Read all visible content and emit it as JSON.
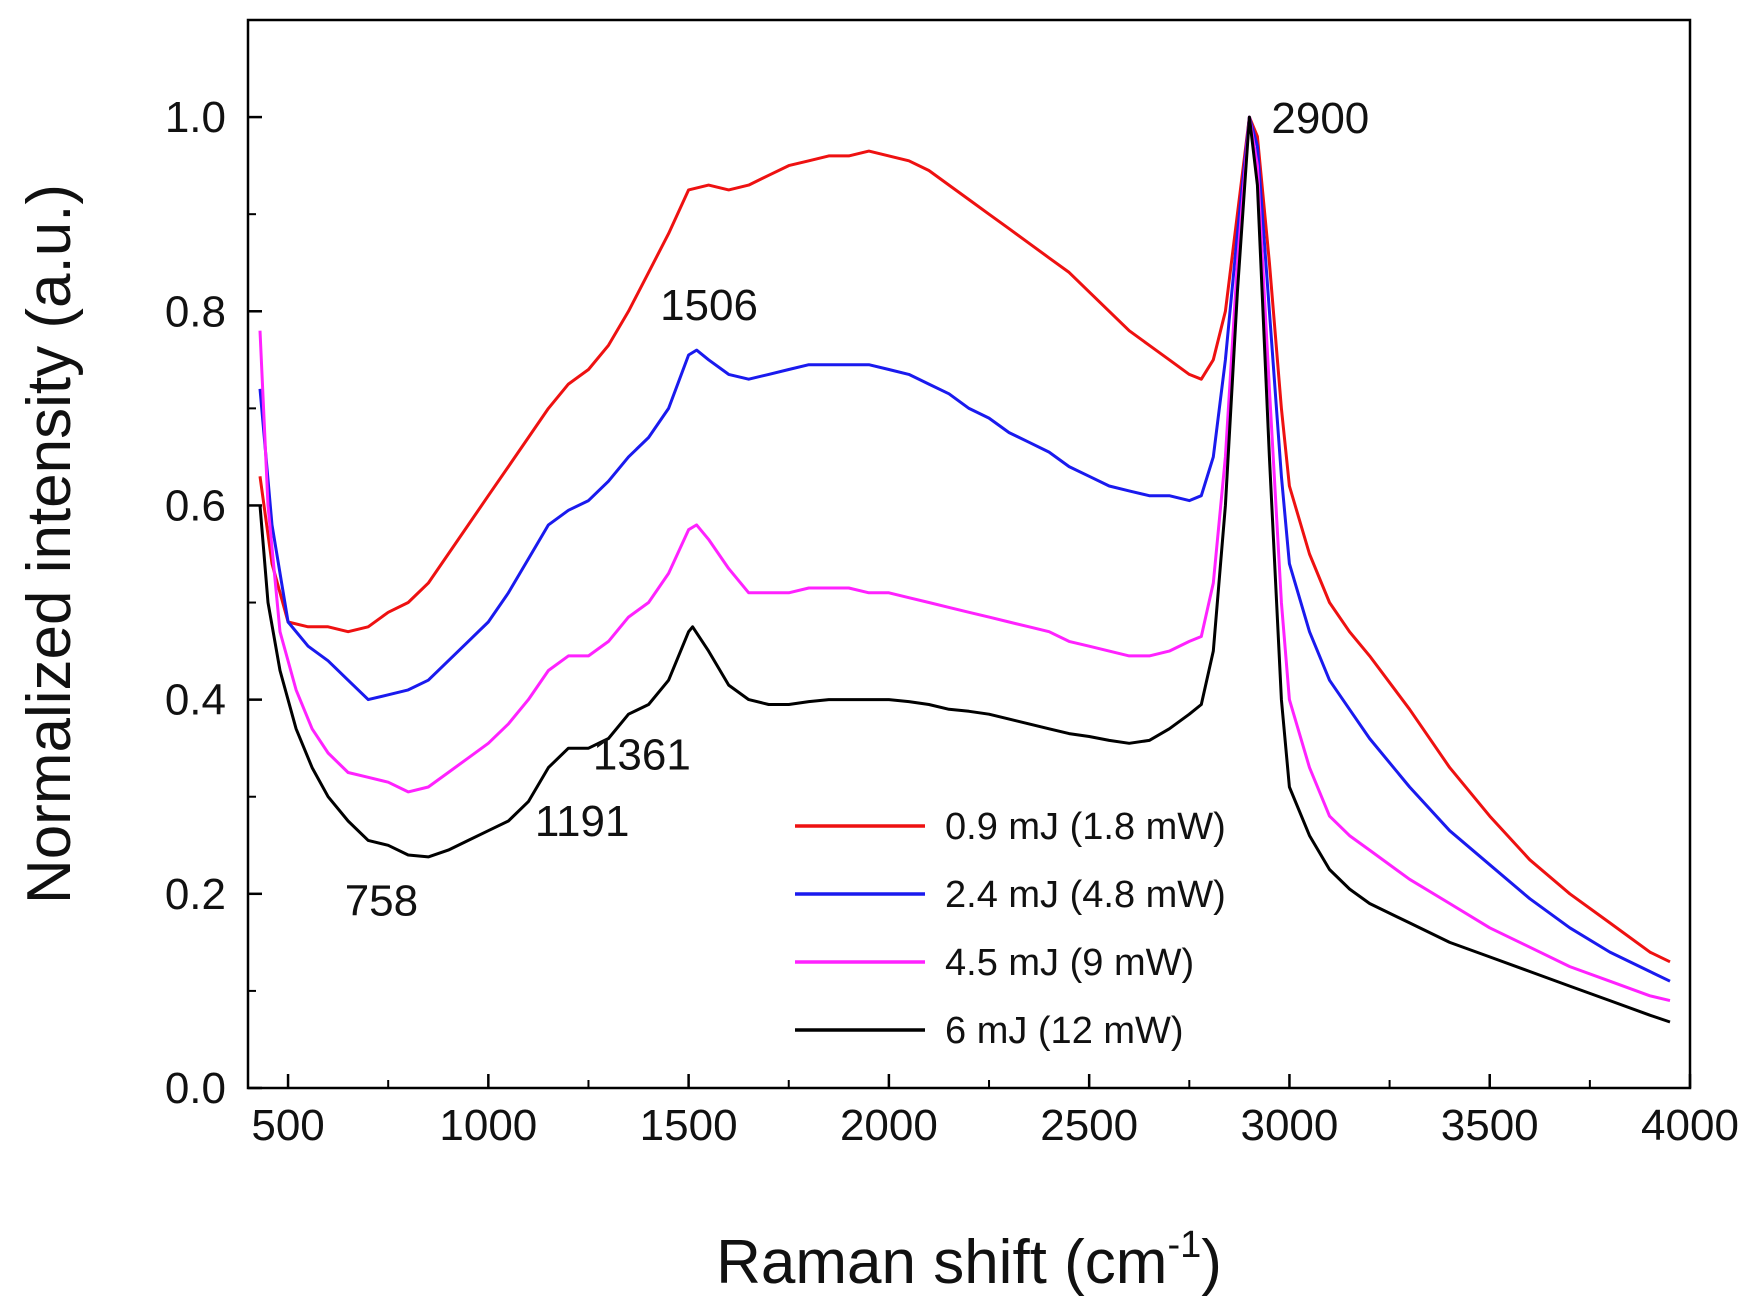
{
  "chart_data": {
    "type": "line",
    "title": "",
    "xlabel": "Raman shift (cm",
    "xlabel_sup": "-1",
    "xlabel_close": ")",
    "ylabel": "Normalized intensity (a.u.)",
    "xlim": [
      400,
      4000
    ],
    "ylim": [
      0.0,
      1.1
    ],
    "xticks": [
      500,
      1000,
      1500,
      2000,
      2500,
      3000,
      3500,
      4000
    ],
    "xtick_labels": [
      "500",
      "1000",
      "1500",
      "2000",
      "2500",
      "3000",
      "3500",
      "4000"
    ],
    "yticks": [
      0.0,
      0.2,
      0.4,
      0.6,
      0.8,
      1.0
    ],
    "ytick_labels": [
      "0.0",
      "0.2",
      "0.4",
      "0.6",
      "0.8",
      "1.0"
    ],
    "grid": false,
    "legend_position": "bottom-right",
    "annotations": [
      {
        "text": "758",
        "x": 758,
        "y": 0.25
      },
      {
        "text": "1191",
        "x": 1191,
        "y": 0.35
      },
      {
        "text": "1361",
        "x": 1361,
        "y": 0.39
      },
      {
        "text": "1506",
        "x": 1506,
        "y": 0.76
      },
      {
        "text": "2900",
        "x": 2900,
        "y": 1.0
      }
    ],
    "series": [
      {
        "name": "0.9 mJ (1.8 mW)",
        "color": "#ee1111",
        "points": [
          [
            430,
            0.63
          ],
          [
            460,
            0.54
          ],
          [
            500,
            0.48
          ],
          [
            550,
            0.475
          ],
          [
            600,
            0.475
          ],
          [
            650,
            0.47
          ],
          [
            700,
            0.475
          ],
          [
            750,
            0.49
          ],
          [
            800,
            0.5
          ],
          [
            850,
            0.52
          ],
          [
            900,
            0.55
          ],
          [
            950,
            0.58
          ],
          [
            1000,
            0.61
          ],
          [
            1050,
            0.64
          ],
          [
            1100,
            0.67
          ],
          [
            1150,
            0.7
          ],
          [
            1200,
            0.725
          ],
          [
            1250,
            0.74
          ],
          [
            1300,
            0.765
          ],
          [
            1350,
            0.8
          ],
          [
            1400,
            0.84
          ],
          [
            1450,
            0.88
          ],
          [
            1500,
            0.925
          ],
          [
            1550,
            0.93
          ],
          [
            1600,
            0.925
          ],
          [
            1650,
            0.93
          ],
          [
            1700,
            0.94
          ],
          [
            1750,
            0.95
          ],
          [
            1800,
            0.955
          ],
          [
            1850,
            0.96
          ],
          [
            1900,
            0.96
          ],
          [
            1950,
            0.965
          ],
          [
            2000,
            0.96
          ],
          [
            2050,
            0.955
          ],
          [
            2100,
            0.945
          ],
          [
            2150,
            0.93
          ],
          [
            2200,
            0.915
          ],
          [
            2250,
            0.9
          ],
          [
            2300,
            0.885
          ],
          [
            2350,
            0.87
          ],
          [
            2400,
            0.855
          ],
          [
            2450,
            0.84
          ],
          [
            2500,
            0.82
          ],
          [
            2550,
            0.8
          ],
          [
            2600,
            0.78
          ],
          [
            2650,
            0.765
          ],
          [
            2700,
            0.75
          ],
          [
            2750,
            0.735
          ],
          [
            2780,
            0.73
          ],
          [
            2810,
            0.75
          ],
          [
            2840,
            0.8
          ],
          [
            2870,
            0.9
          ],
          [
            2900,
            1.0
          ],
          [
            2920,
            0.98
          ],
          [
            2950,
            0.85
          ],
          [
            2980,
            0.7
          ],
          [
            3000,
            0.62
          ],
          [
            3050,
            0.55
          ],
          [
            3100,
            0.5
          ],
          [
            3150,
            0.47
          ],
          [
            3200,
            0.445
          ],
          [
            3300,
            0.39
          ],
          [
            3400,
            0.33
          ],
          [
            3500,
            0.28
          ],
          [
            3600,
            0.235
          ],
          [
            3700,
            0.2
          ],
          [
            3800,
            0.17
          ],
          [
            3900,
            0.14
          ],
          [
            3950,
            0.13
          ]
        ]
      },
      {
        "name": "2.4 mJ (4.8 mW)",
        "color": "#1a1aee",
        "points": [
          [
            430,
            0.72
          ],
          [
            460,
            0.58
          ],
          [
            500,
            0.48
          ],
          [
            550,
            0.455
          ],
          [
            600,
            0.44
          ],
          [
            650,
            0.42
          ],
          [
            700,
            0.4
          ],
          [
            750,
            0.405
          ],
          [
            800,
            0.41
          ],
          [
            850,
            0.42
          ],
          [
            900,
            0.44
          ],
          [
            950,
            0.46
          ],
          [
            1000,
            0.48
          ],
          [
            1050,
            0.51
          ],
          [
            1100,
            0.545
          ],
          [
            1150,
            0.58
          ],
          [
            1200,
            0.595
          ],
          [
            1250,
            0.605
          ],
          [
            1300,
            0.625
          ],
          [
            1350,
            0.65
          ],
          [
            1400,
            0.67
          ],
          [
            1450,
            0.7
          ],
          [
            1500,
            0.755
          ],
          [
            1520,
            0.76
          ],
          [
            1550,
            0.75
          ],
          [
            1600,
            0.735
          ],
          [
            1650,
            0.73
          ],
          [
            1700,
            0.735
          ],
          [
            1750,
            0.74
          ],
          [
            1800,
            0.745
          ],
          [
            1850,
            0.745
          ],
          [
            1900,
            0.745
          ],
          [
            1950,
            0.745
          ],
          [
            2000,
            0.74
          ],
          [
            2050,
            0.735
          ],
          [
            2100,
            0.725
          ],
          [
            2150,
            0.715
          ],
          [
            2200,
            0.7
          ],
          [
            2250,
            0.69
          ],
          [
            2300,
            0.675
          ],
          [
            2350,
            0.665
          ],
          [
            2400,
            0.655
          ],
          [
            2450,
            0.64
          ],
          [
            2500,
            0.63
          ],
          [
            2550,
            0.62
          ],
          [
            2600,
            0.615
          ],
          [
            2650,
            0.61
          ],
          [
            2700,
            0.61
          ],
          [
            2750,
            0.605
          ],
          [
            2780,
            0.61
          ],
          [
            2810,
            0.65
          ],
          [
            2840,
            0.75
          ],
          [
            2870,
            0.88
          ],
          [
            2900,
            1.0
          ],
          [
            2920,
            0.97
          ],
          [
            2950,
            0.8
          ],
          [
            2980,
            0.63
          ],
          [
            3000,
            0.54
          ],
          [
            3050,
            0.47
          ],
          [
            3100,
            0.42
          ],
          [
            3150,
            0.39
          ],
          [
            3200,
            0.36
          ],
          [
            3300,
            0.31
          ],
          [
            3400,
            0.265
          ],
          [
            3500,
            0.23
          ],
          [
            3600,
            0.195
          ],
          [
            3700,
            0.165
          ],
          [
            3800,
            0.14
          ],
          [
            3900,
            0.12
          ],
          [
            3950,
            0.11
          ]
        ]
      },
      {
        "name": "4.5 mJ (9 mW)",
        "color": "#ff22ff",
        "points": [
          [
            430,
            0.78
          ],
          [
            450,
            0.6
          ],
          [
            480,
            0.47
          ],
          [
            520,
            0.41
          ],
          [
            560,
            0.37
          ],
          [
            600,
            0.345
          ],
          [
            650,
            0.325
          ],
          [
            700,
            0.32
          ],
          [
            750,
            0.315
          ],
          [
            800,
            0.305
          ],
          [
            850,
            0.31
          ],
          [
            900,
            0.325
          ],
          [
            950,
            0.34
          ],
          [
            1000,
            0.355
          ],
          [
            1050,
            0.375
          ],
          [
            1100,
            0.4
          ],
          [
            1150,
            0.43
          ],
          [
            1200,
            0.445
          ],
          [
            1250,
            0.445
          ],
          [
            1300,
            0.46
          ],
          [
            1350,
            0.485
          ],
          [
            1400,
            0.5
          ],
          [
            1450,
            0.53
          ],
          [
            1500,
            0.575
          ],
          [
            1520,
            0.58
          ],
          [
            1550,
            0.565
          ],
          [
            1600,
            0.535
          ],
          [
            1650,
            0.51
          ],
          [
            1700,
            0.51
          ],
          [
            1750,
            0.51
          ],
          [
            1800,
            0.515
          ],
          [
            1850,
            0.515
          ],
          [
            1900,
            0.515
          ],
          [
            1950,
            0.51
          ],
          [
            2000,
            0.51
          ],
          [
            2050,
            0.505
          ],
          [
            2100,
            0.5
          ],
          [
            2150,
            0.495
          ],
          [
            2200,
            0.49
          ],
          [
            2250,
            0.485
          ],
          [
            2300,
            0.48
          ],
          [
            2350,
            0.475
          ],
          [
            2400,
            0.47
          ],
          [
            2450,
            0.46
          ],
          [
            2500,
            0.455
          ],
          [
            2550,
            0.45
          ],
          [
            2600,
            0.445
          ],
          [
            2650,
            0.445
          ],
          [
            2700,
            0.45
          ],
          [
            2750,
            0.46
          ],
          [
            2780,
            0.465
          ],
          [
            2810,
            0.52
          ],
          [
            2840,
            0.65
          ],
          [
            2870,
            0.85
          ],
          [
            2900,
            1.0
          ],
          [
            2920,
            0.95
          ],
          [
            2950,
            0.72
          ],
          [
            2980,
            0.5
          ],
          [
            3000,
            0.4
          ],
          [
            3050,
            0.33
          ],
          [
            3100,
            0.28
          ],
          [
            3150,
            0.26
          ],
          [
            3200,
            0.245
          ],
          [
            3300,
            0.215
          ],
          [
            3400,
            0.19
          ],
          [
            3500,
            0.165
          ],
          [
            3600,
            0.145
          ],
          [
            3700,
            0.125
          ],
          [
            3800,
            0.11
          ],
          [
            3900,
            0.095
          ],
          [
            3950,
            0.09
          ]
        ]
      },
      {
        "name": "6 mJ (12 mW)",
        "color": "#000000",
        "points": [
          [
            430,
            0.6
          ],
          [
            450,
            0.5
          ],
          [
            480,
            0.43
          ],
          [
            520,
            0.37
          ],
          [
            560,
            0.33
          ],
          [
            600,
            0.3
          ],
          [
            650,
            0.275
          ],
          [
            700,
            0.255
          ],
          [
            750,
            0.25
          ],
          [
            800,
            0.24
          ],
          [
            850,
            0.238
          ],
          [
            900,
            0.245
          ],
          [
            950,
            0.255
          ],
          [
            1000,
            0.265
          ],
          [
            1050,
            0.275
          ],
          [
            1100,
            0.295
          ],
          [
            1150,
            0.33
          ],
          [
            1200,
            0.35
          ],
          [
            1250,
            0.35
          ],
          [
            1300,
            0.36
          ],
          [
            1350,
            0.385
          ],
          [
            1400,
            0.395
          ],
          [
            1450,
            0.42
          ],
          [
            1500,
            0.47
          ],
          [
            1510,
            0.475
          ],
          [
            1550,
            0.45
          ],
          [
            1600,
            0.415
          ],
          [
            1650,
            0.4
          ],
          [
            1700,
            0.395
          ],
          [
            1750,
            0.395
          ],
          [
            1800,
            0.398
          ],
          [
            1850,
            0.4
          ],
          [
            1900,
            0.4
          ],
          [
            1950,
            0.4
          ],
          [
            2000,
            0.4
          ],
          [
            2050,
            0.398
          ],
          [
            2100,
            0.395
          ],
          [
            2150,
            0.39
          ],
          [
            2200,
            0.388
          ],
          [
            2250,
            0.385
          ],
          [
            2300,
            0.38
          ],
          [
            2350,
            0.375
          ],
          [
            2400,
            0.37
          ],
          [
            2450,
            0.365
          ],
          [
            2500,
            0.362
          ],
          [
            2550,
            0.358
          ],
          [
            2600,
            0.355
          ],
          [
            2650,
            0.358
          ],
          [
            2700,
            0.37
          ],
          [
            2750,
            0.385
          ],
          [
            2780,
            0.395
          ],
          [
            2810,
            0.45
          ],
          [
            2840,
            0.6
          ],
          [
            2870,
            0.82
          ],
          [
            2900,
            1.0
          ],
          [
            2920,
            0.93
          ],
          [
            2950,
            0.65
          ],
          [
            2980,
            0.4
          ],
          [
            3000,
            0.31
          ],
          [
            3050,
            0.26
          ],
          [
            3100,
            0.225
          ],
          [
            3150,
            0.205
          ],
          [
            3200,
            0.19
          ],
          [
            3300,
            0.17
          ],
          [
            3400,
            0.15
          ],
          [
            3500,
            0.135
          ],
          [
            3600,
            0.12
          ],
          [
            3700,
            0.105
          ],
          [
            3800,
            0.09
          ],
          [
            3900,
            0.075
          ],
          [
            3950,
            0.068
          ]
        ]
      }
    ]
  }
}
